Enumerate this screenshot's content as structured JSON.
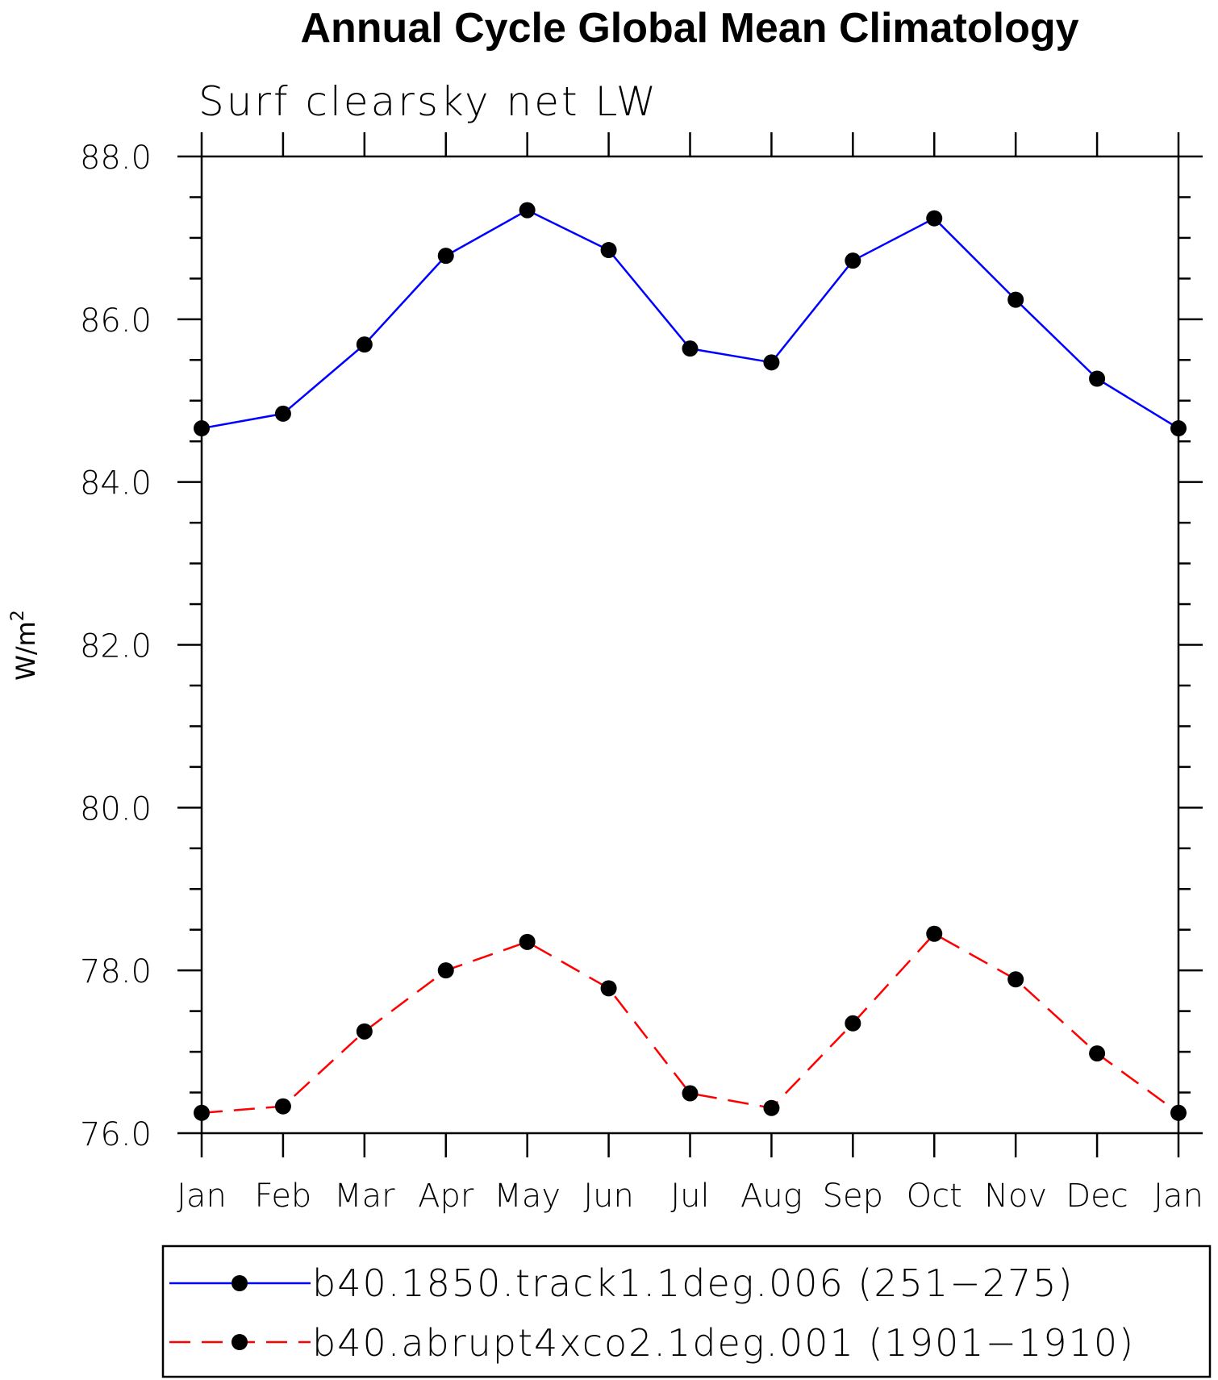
{
  "chart_data": {
    "type": "line",
    "title": "Annual Cycle Global Mean Climatology",
    "subtitle": "Surf clearsky net LW",
    "ylabel_base": "W/m",
    "ylabel_sup": "2",
    "categories": [
      "Jan",
      "Feb",
      "Mar",
      "Apr",
      "May",
      "Jun",
      "Jul",
      "Aug",
      "Sep",
      "Oct",
      "Nov",
      "Dec",
      "Jan"
    ],
    "ylim": [
      76.0,
      88.0
    ],
    "yticks": [
      "76.0",
      "78.0",
      "80.0",
      "82.0",
      "84.0",
      "86.0",
      "88.0"
    ],
    "series": [
      {
        "name": "b40.1850.track1.1deg.006 (251−275)",
        "color": "#0000ff",
        "dash": "solid",
        "values": [
          84.66,
          84.84,
          85.69,
          86.78,
          87.34,
          86.85,
          85.64,
          85.47,
          86.72,
          87.24,
          86.24,
          85.27,
          84.66
        ]
      },
      {
        "name": "b40.abrupt4xco2.1deg.001 (1901−1910)",
        "color": "#ff0000",
        "dash": "dashed",
        "values": [
          76.25,
          76.33,
          77.25,
          78.0,
          78.35,
          77.78,
          76.49,
          76.31,
          77.35,
          78.45,
          77.89,
          76.98,
          76.25
        ]
      }
    ]
  }
}
